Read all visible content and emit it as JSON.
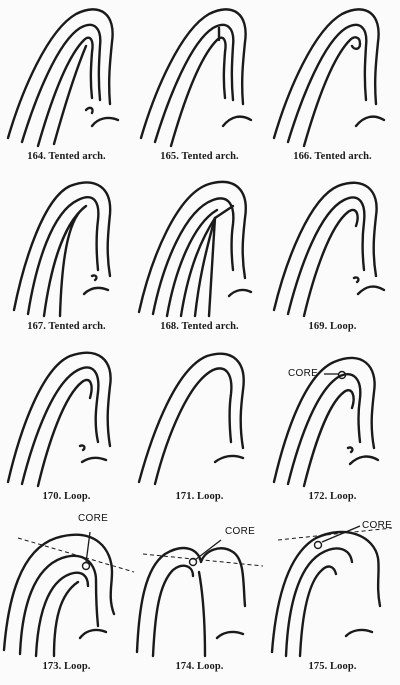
{
  "figures": [
    {
      "caption": "164. Tented arch.",
      "core_label": ""
    },
    {
      "caption": "165. Tented arch.",
      "core_label": ""
    },
    {
      "caption": "166. Tented arch.",
      "core_label": ""
    },
    {
      "caption": "167. Tented arch.",
      "core_label": ""
    },
    {
      "caption": "168. Tented arch.",
      "core_label": ""
    },
    {
      "caption": "169. Loop.",
      "core_label": ""
    },
    {
      "caption": "170. Loop.",
      "core_label": ""
    },
    {
      "caption": "171. Loop.",
      "core_label": ""
    },
    {
      "caption": "172. Loop.",
      "core_label": "CORE"
    },
    {
      "caption": "173. Loop.",
      "core_label": "CORE"
    },
    {
      "caption": "174. Loop.",
      "core_label": "CORE"
    },
    {
      "caption": "175. Loop.",
      "core_label": "CORE"
    }
  ]
}
